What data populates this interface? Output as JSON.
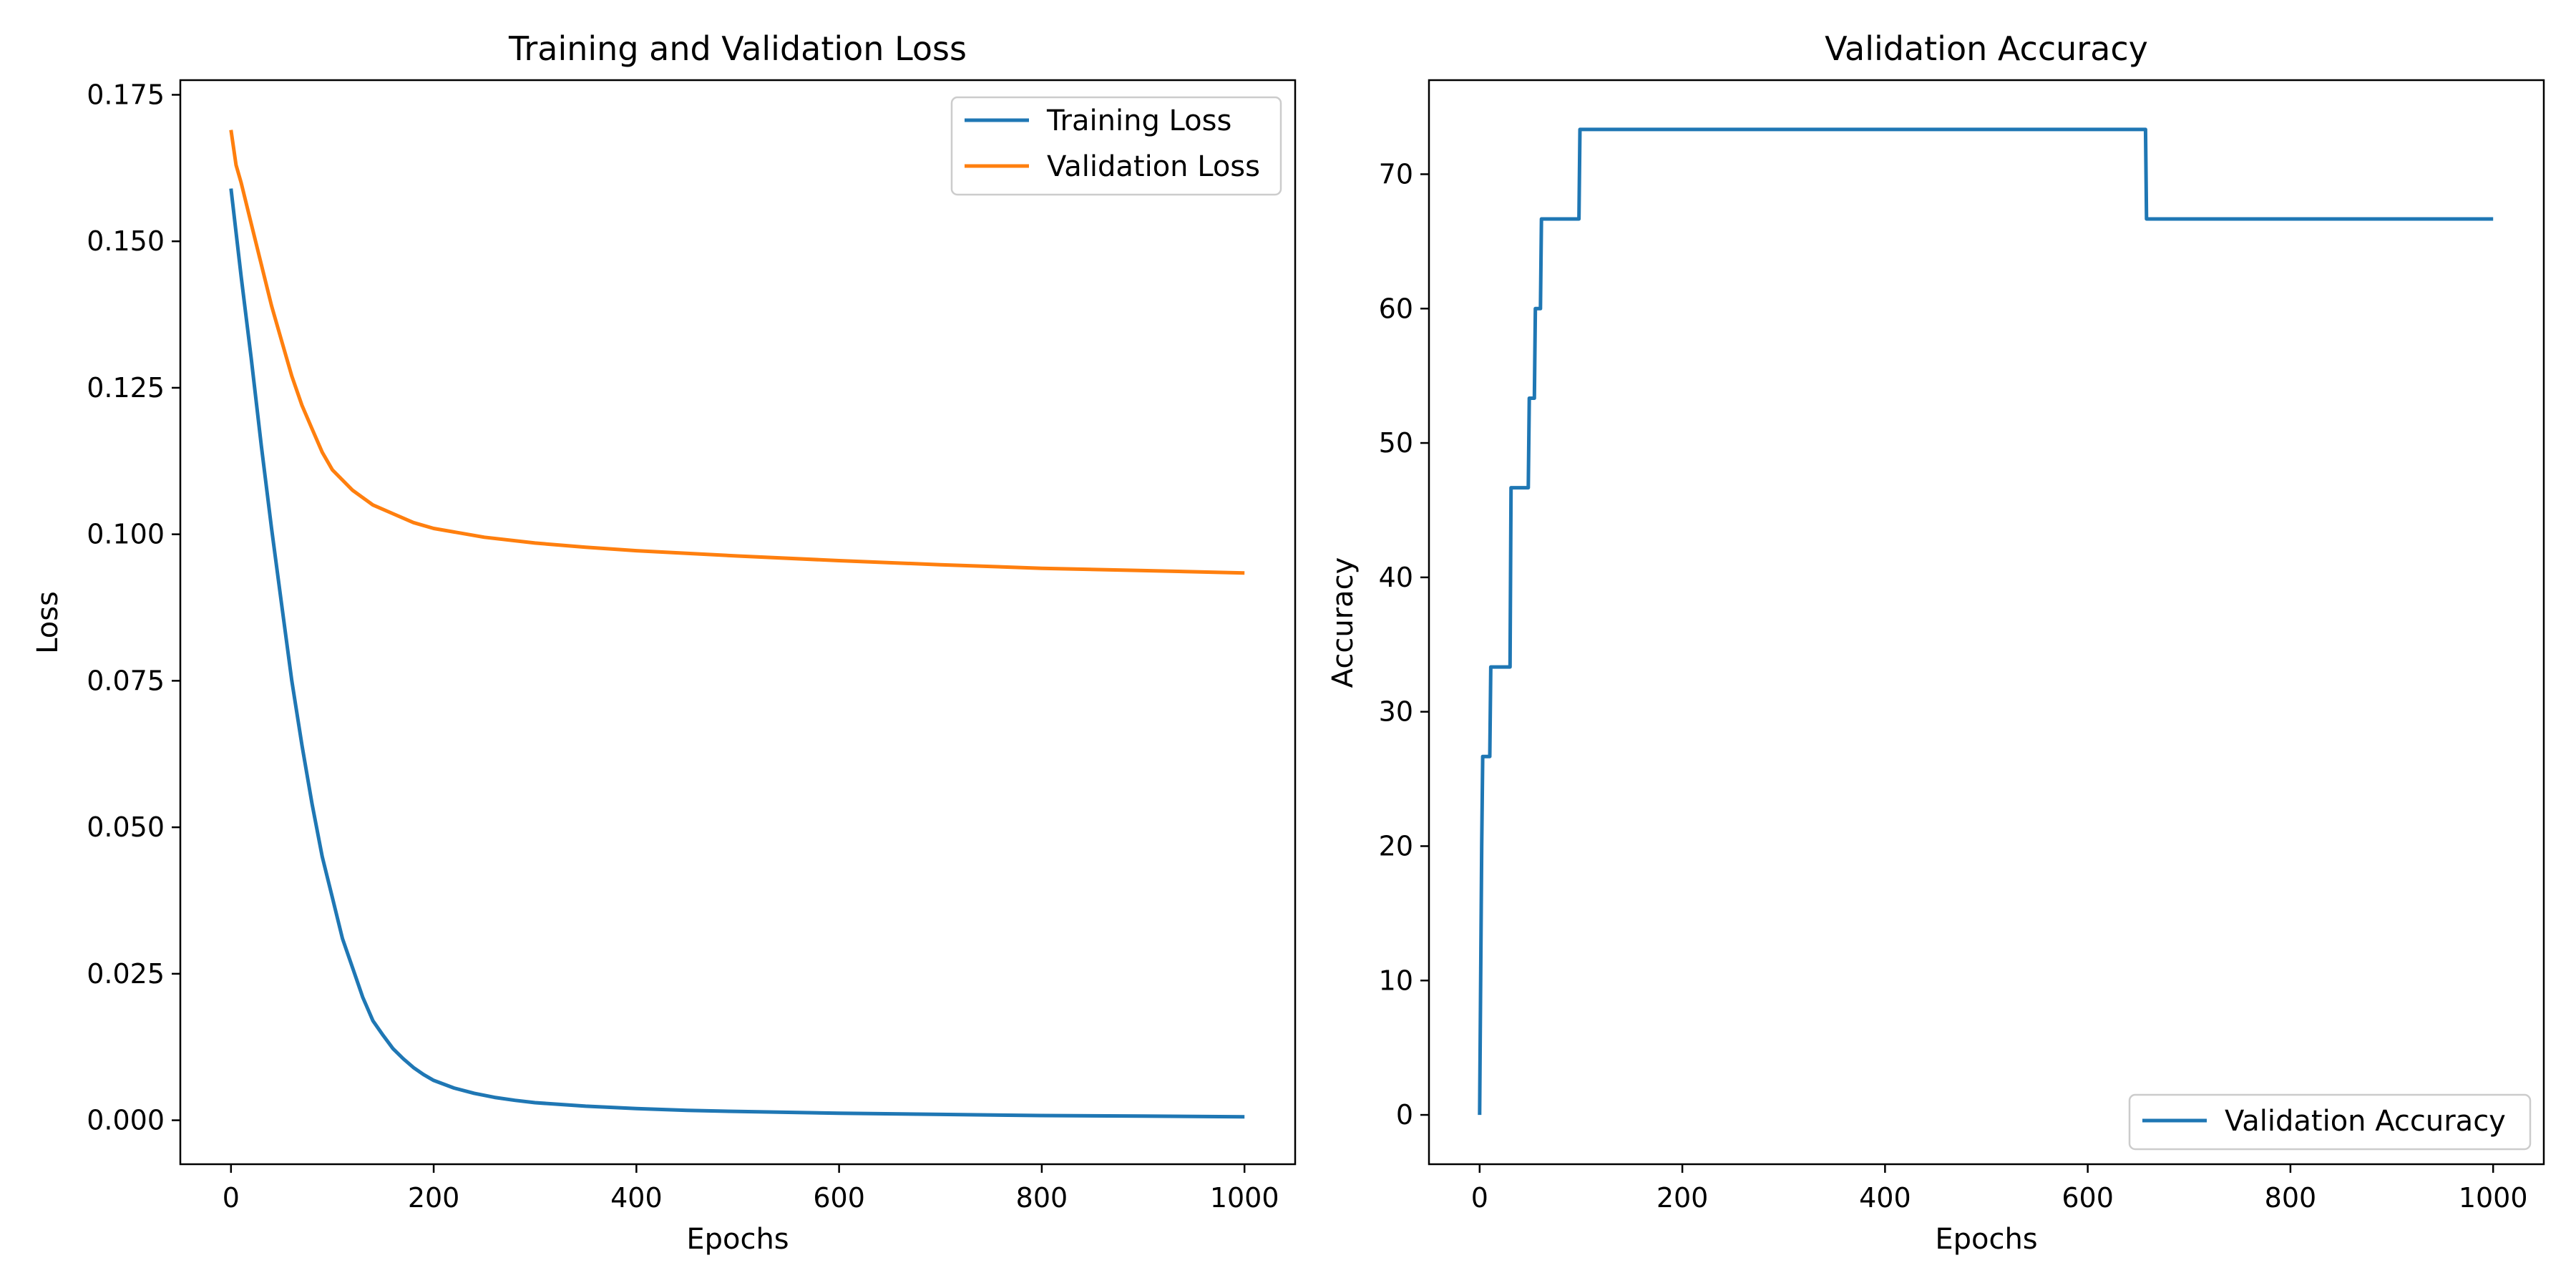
{
  "colors": {
    "training": "#1f77b4",
    "validation": "#ff7f0e",
    "accuracy": "#1f77b4"
  },
  "chart_data": [
    {
      "type": "line",
      "title": "Training and Validation Loss",
      "xlabel": "Epochs",
      "ylabel": "Loss",
      "xlim": [
        -50,
        1050
      ],
      "ylim": [
        -0.0075,
        0.1775
      ],
      "xticks": [
        0,
        200,
        400,
        600,
        800,
        1000
      ],
      "xtick_labels": [
        "0",
        "200",
        "400",
        "600",
        "800",
        "1000"
      ],
      "yticks": [
        0.0,
        0.025,
        0.05,
        0.075,
        0.1,
        0.125,
        0.15,
        0.175
      ],
      "ytick_labels": [
        "0.000",
        "0.025",
        "0.050",
        "0.075",
        "0.100",
        "0.125",
        "0.150",
        "0.175"
      ],
      "legend_position": "upper right",
      "grid": false,
      "series": [
        {
          "name": "Training Loss",
          "color": "#1f77b4",
          "x": [
            0,
            10,
            20,
            30,
            40,
            50,
            60,
            70,
            80,
            90,
            100,
            110,
            120,
            130,
            140,
            150,
            160,
            170,
            180,
            190,
            200,
            220,
            240,
            260,
            280,
            300,
            350,
            400,
            450,
            500,
            600,
            700,
            800,
            900,
            1000
          ],
          "y": [
            0.159,
            0.144,
            0.13,
            0.115,
            0.101,
            0.088,
            0.075,
            0.064,
            0.054,
            0.045,
            0.038,
            0.031,
            0.026,
            0.021,
            0.017,
            0.0145,
            0.0122,
            0.0105,
            0.009,
            0.0078,
            0.0068,
            0.0055,
            0.0046,
            0.0039,
            0.0034,
            0.003,
            0.0024,
            0.002,
            0.0017,
            0.0015,
            0.0012,
            0.001,
            0.0008,
            0.0007,
            0.0006
          ]
        },
        {
          "name": "Validation Loss",
          "color": "#ff7f0e",
          "x": [
            0,
            5,
            10,
            20,
            30,
            40,
            50,
            60,
            70,
            80,
            90,
            100,
            120,
            140,
            160,
            180,
            200,
            250,
            300,
            350,
            400,
            500,
            600,
            700,
            800,
            900,
            1000
          ],
          "y": [
            0.169,
            0.163,
            0.16,
            0.153,
            0.146,
            0.139,
            0.133,
            0.127,
            0.122,
            0.118,
            0.114,
            0.111,
            0.1075,
            0.105,
            0.1035,
            0.102,
            0.101,
            0.0995,
            0.0985,
            0.0978,
            0.0972,
            0.0963,
            0.0955,
            0.0948,
            0.0942,
            0.0938,
            0.0934
          ]
        }
      ]
    },
    {
      "type": "line",
      "title": "Validation Accuracy",
      "xlabel": "Epochs",
      "ylabel": "Accuracy",
      "xlim": [
        -50,
        1050
      ],
      "ylim": [
        -3.67,
        77.0
      ],
      "xticks": [
        0,
        200,
        400,
        600,
        800,
        1000
      ],
      "xtick_labels": [
        "0",
        "200",
        "400",
        "600",
        "800",
        "1000"
      ],
      "yticks": [
        0,
        10,
        20,
        30,
        40,
        50,
        60,
        70
      ],
      "ytick_labels": [
        "0",
        "10",
        "20",
        "30",
        "40",
        "50",
        "60",
        "70"
      ],
      "legend_position": "lower right",
      "grid": false,
      "series": [
        {
          "name": "Validation Accuracy",
          "color": "#1f77b4",
          "x": [
            0,
            2,
            3,
            10,
            11,
            30,
            31,
            48,
            49,
            54,
            55,
            60,
            61,
            98,
            99,
            657,
            658,
            1000
          ],
          "y": [
            0,
            20,
            26.67,
            26.67,
            33.33,
            33.33,
            46.67,
            46.67,
            53.33,
            53.33,
            60,
            60,
            66.67,
            66.67,
            73.33,
            73.33,
            66.67,
            66.67
          ]
        }
      ]
    }
  ]
}
